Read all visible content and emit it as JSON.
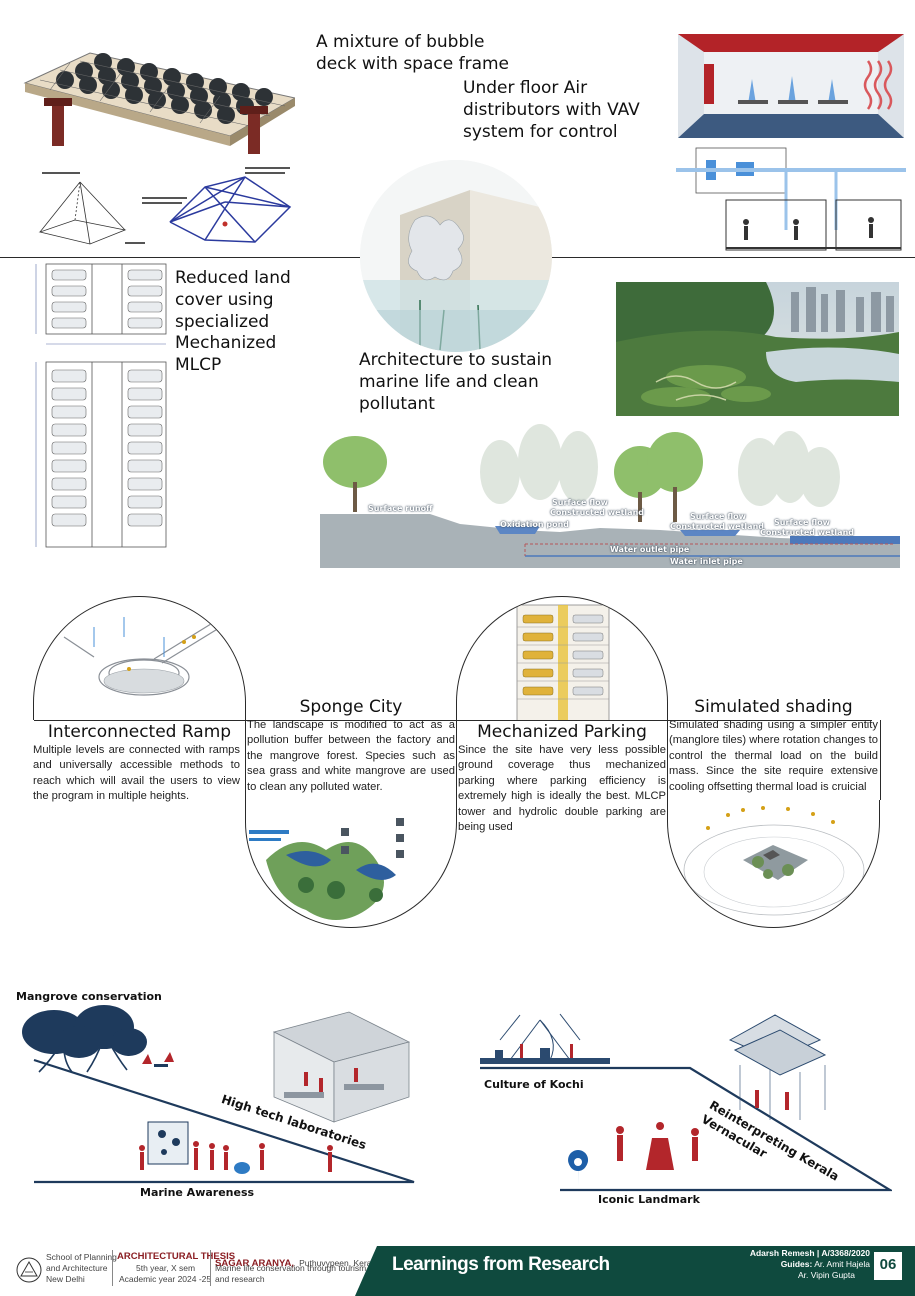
{
  "blocks": {
    "bubble_deck": "A mixture of bubble deck with space frame",
    "underfloor": "Under floor Air distributors with VAV system for control",
    "mlcp": "Reduced land cover using specialized Mechanized MLCP",
    "marine": "Architecture to sustain marine life and clean pollutant"
  },
  "wetland_labels": {
    "surface_runoff": "Surface runoff",
    "surface_flow_1": "Surface flow",
    "constructed_wetland_1": "Constructed wetland",
    "oxidation_pond": "Oxidation pond",
    "surface_flow_2": "Surface flow",
    "constructed_wetland_2": "Constructed wetland",
    "surface_flow_3": "Surface flow",
    "constructed_wetland_3": "Constructed wetland",
    "water_outlet": "Water outlet pipe",
    "water_inlet": "Water inlet pipe"
  },
  "sections": [
    {
      "title": "Interconnected Ramp",
      "text": "Multiple levels are connected with ramps and universally accessible methods to reach which will avail the users to view the program in multiple heights."
    },
    {
      "title": "Sponge City",
      "text": "The landscape is modified to act as a pollution buffer between the factory and the mangrove forest. Species such as sea grass and white mangrove are used to clean any polluted water."
    },
    {
      "title": "Mechanized Parking",
      "text": "Since the site have very less possible ground coverage thus mechanized parking where parking efficiency is extremely high is ideally the best. MLCP tower and hydrolic double parking are being used"
    },
    {
      "title": "Simulated shading",
      "text": "Simulated shading using a simpler entity (manglore tiles) where rotation changes to control the thermal load on the build mass. Since the site require extensive cooling offsetting thermal load is cruicial"
    }
  ],
  "bottom_labels": {
    "mangrove": "Mangrove conservation",
    "high_tech": "High tech laboratories",
    "marine_awareness": "Marine Awareness",
    "culture_kochi": "Culture of Kochi",
    "reinterpreting": "Reinterpreting Kerala",
    "vernacular": "Vernacular",
    "iconic": "Iconic Landmark"
  },
  "footer": {
    "school_line1": "School of Planning",
    "school_line2": "and Architecture",
    "school_line3": "New Delhi",
    "thesis_title": "ARCHITECTURAL THESIS",
    "thesis_line2": "5th year, X sem",
    "thesis_line3": "Academic year 2024 -25",
    "project_name": "SAGAR ARANYA,",
    "project_place": "Puthuvypeen, Kerala",
    "project_line2": "Marine life conservation through tourism",
    "project_line3": "and research",
    "banner": "Learnings from Research",
    "author": "Adarsh Remesh  |  A/3368/2020",
    "guides_label": "Guides:",
    "guide1": "Ar. Amit Hajela",
    "guide2": "Ar. Vipin Gupta",
    "page_number": "06"
  },
  "colors": {
    "footer_green": "#0f4a3e",
    "accent_red": "#b3262b",
    "navy": "#1e3a5c"
  }
}
